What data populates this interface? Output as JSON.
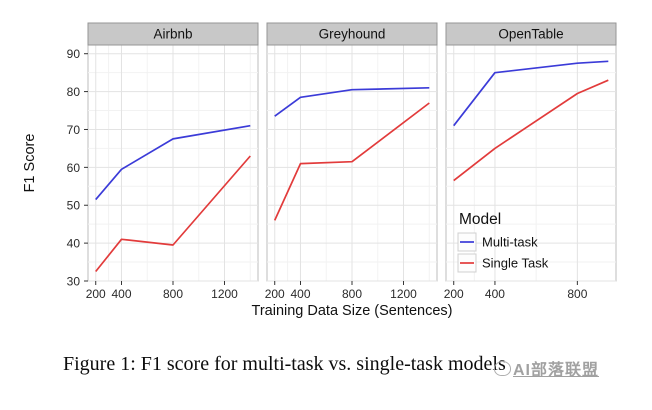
{
  "caption": {
    "text": "Figure 1: F1 score for multi-task vs. single-task models"
  },
  "watermark": {
    "text": "AI部落联盟"
  },
  "chart_data": {
    "type": "line",
    "title": "",
    "xlabel": "Training Data Size (Sentences)",
    "ylabel": "F1 Score",
    "y_ticks": [
      30,
      40,
      50,
      60,
      70,
      80,
      90
    ],
    "y_domain": [
      30,
      92.3
    ],
    "grid": "major + minor gridlines, light gray on white panels (theme_bw)",
    "legend": {
      "title": "Model",
      "position": "inside bottom-right of OpenTable panel",
      "entries": [
        {
          "label": "Multi-task",
          "color": "#3b3bd8"
        },
        {
          "label": "Single Task",
          "color": "#e23b3b"
        }
      ]
    },
    "series_colors": {
      "Multi-task": "#3b3bd8",
      "Single Task": "#e23b3b"
    },
    "facets": [
      {
        "label": "Airbnb",
        "x_domain": [
          140,
          1460
        ],
        "x_ticks": [
          200,
          400,
          800,
          1200
        ],
        "x": [
          200,
          400,
          800,
          1400
        ],
        "series": [
          {
            "name": "Multi-task",
            "values": [
              51.5,
              59.5,
              67.5,
              71
            ]
          },
          {
            "name": "Single Task",
            "values": [
              32.5,
              41,
              39.5,
              63
            ]
          }
        ]
      },
      {
        "label": "Greyhound",
        "x_domain": [
          140,
          1460
        ],
        "x_ticks": [
          200,
          400,
          800,
          1200
        ],
        "x": [
          200,
          400,
          800,
          1400
        ],
        "series": [
          {
            "name": "Multi-task",
            "values": [
              73.5,
              78.5,
              80.5,
              81
            ]
          },
          {
            "name": "Single Task",
            "values": [
              46,
              61,
              61.5,
              77
            ]
          }
        ]
      },
      {
        "label": "OpenTable",
        "x_domain": [
          162.5,
          987.5
        ],
        "x_ticks": [
          200,
          400,
          800
        ],
        "x": [
          200,
          400,
          800,
          950
        ],
        "series": [
          {
            "name": "Multi-task",
            "values": [
              71,
              85,
              87.5,
              88
            ]
          },
          {
            "name": "Single Task",
            "values": [
              56.5,
              65,
              79.5,
              83
            ]
          }
        ]
      }
    ],
    "theme": {
      "strip_bg": "#c8c8c8",
      "strip_border": "#969696",
      "strip_text": "#111111",
      "panel_border": "#bebebe",
      "grid_major": "#e3e3e3",
      "grid_minor": "#f2f2f2",
      "axis_text": "#2b2b2b",
      "legend_key_bg": "#fdfdfd",
      "legend_key_border": "#d0d0d0"
    }
  }
}
